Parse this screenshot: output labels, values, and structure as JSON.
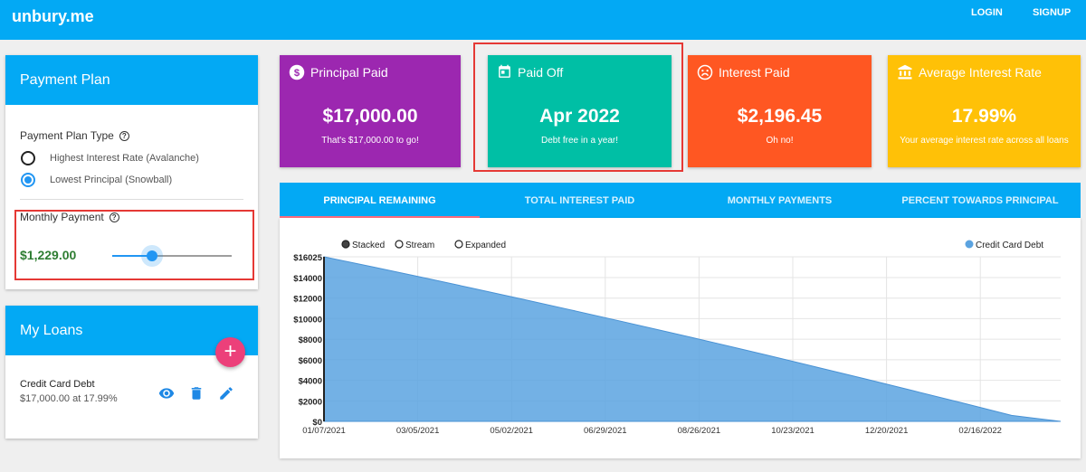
{
  "app": {
    "brand": "unbury.me"
  },
  "nav": {
    "login": "LOGIN",
    "signup": "SIGNUP"
  },
  "payment_plan": {
    "title": "Payment Plan",
    "type_label": "Payment Plan Type",
    "options": [
      {
        "label": "Highest Interest Rate (Avalanche)",
        "selected": false
      },
      {
        "label": "Lowest Principal (Snowball)",
        "selected": true
      }
    ],
    "monthly_label": "Monthly Payment",
    "monthly_value": "$1,229.00",
    "slider_fraction": 0.33
  },
  "loans": {
    "title": "My Loans",
    "add_label": "+",
    "items": [
      {
        "name": "Credit Card Debt",
        "detail": "$17,000.00 at 17.99%"
      }
    ]
  },
  "stats": [
    {
      "icon": "dollar-circle-icon",
      "title": "Principal Paid",
      "value": "$17,000.00",
      "sub": "That's $17,000.00 to go!",
      "color": "#9c27b0"
    },
    {
      "icon": "calendar-icon",
      "title": "Paid Off",
      "value": "Apr 2022",
      "sub": "Debt free in a year!",
      "color": "#00bfa5"
    },
    {
      "icon": "sad-face-icon",
      "title": "Interest Paid",
      "value": "$2,196.45",
      "sub": "Oh no!",
      "color": "#ff5722"
    },
    {
      "icon": "bank-icon",
      "title": "Average Interest Rate",
      "value": "17.99%",
      "sub": "Your average interest rate across all loans",
      "color": "#ffc107"
    }
  ],
  "tabs": [
    "PRINCIPAL REMAINING",
    "TOTAL INTEREST PAID",
    "MONTHLY PAYMENTS",
    "PERCENT TOWARDS PRINCIPAL"
  ],
  "active_tab": 0,
  "chart_controls": {
    "modes": [
      {
        "label": "Stacked",
        "selected": true
      },
      {
        "label": "Stream",
        "selected": false
      },
      {
        "label": "Expanded",
        "selected": false
      }
    ]
  },
  "chart_data": {
    "type": "area",
    "title": "",
    "xlabel": "",
    "ylabel": "",
    "legend_position": "top-right",
    "grid": true,
    "ylim": [
      0,
      16025
    ],
    "y_ticks": [
      "$0",
      "$2000",
      "$4000",
      "$6000",
      "$8000",
      "$10000",
      "$12000",
      "$14000",
      "$16025"
    ],
    "x_ticks": [
      "01/07/2021",
      "03/05/2021",
      "05/02/2021",
      "06/29/2021",
      "08/26/2021",
      "10/23/2021",
      "12/20/2021",
      "02/16/2022"
    ],
    "series": [
      {
        "name": "Credit Card Debt",
        "color": "#5ba3e0",
        "x": [
          "2021-01-07",
          "2021-02-07",
          "2021-03-07",
          "2021-04-07",
          "2021-05-07",
          "2021-06-07",
          "2021-07-07",
          "2021-08-07",
          "2021-09-07",
          "2021-10-07",
          "2021-11-07",
          "2021-12-07",
          "2022-01-07",
          "2022-02-07",
          "2022-03-07",
          "2022-04-07"
        ],
        "values": [
          16025,
          15030,
          14020,
          12990,
          11940,
          10880,
          9800,
          8710,
          7600,
          6470,
          5320,
          4160,
          2980,
          1790,
          580,
          0
        ]
      }
    ]
  }
}
